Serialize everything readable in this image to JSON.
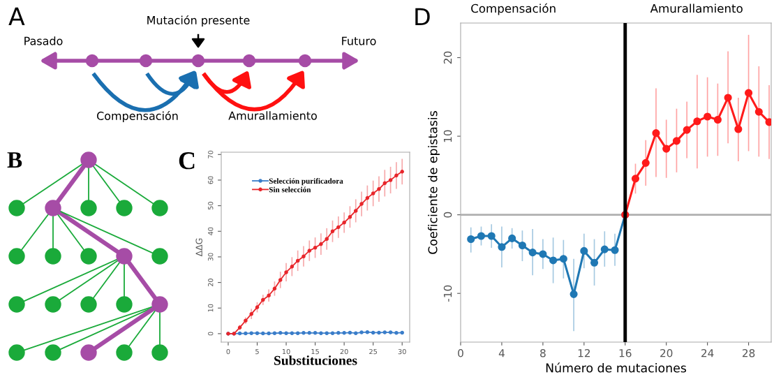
{
  "chart_data": [
    {
      "type": "other",
      "title": "A",
      "annotations": [
        "Pasado",
        "Futuro",
        "Mutación presente",
        "Compensación",
        "Amurallamiento"
      ]
    },
    {
      "type": "other",
      "title": "B"
    },
    {
      "type": "line",
      "title": "C",
      "xlabel": "Substituciones",
      "ylabel": "ΔΔG",
      "xlim": [
        -1.2,
        31.3
      ],
      "ylim": [
        -3.3,
        70.9
      ],
      "xticks": [
        0,
        5,
        10,
        15,
        20,
        25,
        30
      ],
      "yticks": [
        0,
        10,
        20,
        30,
        40,
        50,
        60,
        70
      ],
      "grid": false,
      "legend": "top left",
      "marker": "circle",
      "line_style": "solid",
      "x": [
        0,
        1,
        2,
        3,
        4,
        5,
        6,
        7,
        8,
        9,
        10,
        11,
        12,
        13,
        14,
        15,
        16,
        17,
        18,
        19,
        20,
        21,
        22,
        23,
        24,
        25,
        26,
        27,
        28,
        29,
        30
      ],
      "series": [
        {
          "name": "Selección purificadora",
          "color": "#3a7dc9",
          "values": [
            0,
            0,
            0.1,
            0.1,
            0.2,
            0.2,
            0.1,
            0.1,
            0.2,
            0.3,
            0.2,
            0.2,
            0.2,
            0.3,
            0.3,
            0.3,
            0.2,
            0.2,
            0.2,
            0.3,
            0.3,
            0.4,
            0.2,
            0.5,
            0.6,
            0.4,
            0.4,
            0.5,
            0.5,
            0.3,
            0.4
          ]
        },
        {
          "name": "Sin selección",
          "color": "#e8262b",
          "values": [
            0,
            0,
            2.4,
            5.1,
            7.7,
            10.3,
            13.2,
            14.9,
            17.6,
            21,
            24,
            26.2,
            28.5,
            30.2,
            32.4,
            33.6,
            35,
            37,
            40,
            41.6,
            43.4,
            45.6,
            48,
            50.7,
            53,
            54.8,
            56.5,
            58.8,
            60,
            61.8,
            63.3
          ],
          "errors": [
            null,
            null,
            1,
            1.3,
            2,
            2,
            2,
            2.4,
            2.8,
            3.2,
            3.6,
            3.7,
            4,
            4,
            4,
            4,
            4.2,
            4.2,
            4.2,
            4.2,
            4,
            4.2,
            4.5,
            4.8,
            4.9,
            5,
            5,
            5.2,
            5.2,
            5.2,
            5
          ]
        }
      ]
    },
    {
      "type": "line",
      "title": "D",
      "xlabel": "Número de mutaciones",
      "ylabel": "Coeficiente de epistasis",
      "xlim": [
        0,
        30.2
      ],
      "ylim": [
        -16.2,
        24.4
      ],
      "xticks": [
        0,
        4,
        8,
        12,
        16,
        20,
        24,
        28
      ],
      "yticks": [
        -10,
        0,
        10,
        20
      ],
      "grid": false,
      "marker": "circle",
      "line_style": "solid",
      "annotations": [
        "Compensación",
        "Amurallamiento"
      ],
      "ref_lines": [
        {
          "axis": "x",
          "value": 16,
          "color": "#000000"
        },
        {
          "axis": "y",
          "value": 0,
          "color": "#b0b0b0"
        }
      ],
      "series": [
        {
          "color": "#1f78b4",
          "x": [
            1,
            2,
            3,
            4,
            5,
            6,
            7,
            8,
            9,
            10,
            11,
            12,
            13,
            14,
            15,
            16
          ],
          "values": [
            -3.1,
            -2.7,
            -2.7,
            -4.1,
            -3.0,
            -3.9,
            -4.8,
            -5.0,
            -5.8,
            -5.6,
            -10.1,
            -4.6,
            -6.1,
            -4.4,
            -4.5,
            0
          ],
          "errors": [
            [
              -4.8,
              -1.6
            ],
            [
              -3.9,
              -1.5
            ],
            [
              -4.2,
              -1.2
            ],
            [
              -6.7,
              -1.5
            ],
            [
              -4.3,
              -1.7
            ],
            [
              -5.9,
              -2.0
            ],
            [
              -7.7,
              -1.8
            ],
            [
              -6.9,
              -3.1
            ],
            [
              -8.7,
              -2.9
            ],
            [
              -8.1,
              -3.2
            ],
            [
              -14.8,
              -5.6
            ],
            [
              -6.8,
              -2.4
            ],
            [
              -9.0,
              -3.1
            ],
            [
              -6.6,
              -2.1
            ],
            [
              -6.5,
              -2.4
            ],
            null
          ]
        },
        {
          "color": "#ff1a1a",
          "x": [
            16,
            17,
            18,
            19,
            20,
            21,
            22,
            23,
            24,
            25,
            26,
            27,
            28,
            29,
            30
          ],
          "values": [
            0,
            4.6,
            6.6,
            10.4,
            8.4,
            9.4,
            10.8,
            11.9,
            12.5,
            12.1,
            14.9,
            10.9,
            15.5,
            13.1,
            11.8
          ],
          "errors": [
            null,
            [
              2.7,
              6.5
            ],
            [
              3.7,
              9.5
            ],
            [
              4.8,
              16.1
            ],
            [
              4.7,
              12.1
            ],
            [
              5.4,
              13.5
            ],
            [
              7.2,
              14.4
            ],
            [
              5.9,
              17.8
            ],
            [
              7.4,
              17.5
            ],
            [
              7.5,
              16.7
            ],
            [
              9.1,
              20.8
            ],
            [
              6.8,
              14.9
            ],
            [
              8.1,
              22.9
            ],
            [
              7.4,
              18.9
            ],
            [
              7.1,
              16.5
            ]
          ]
        }
      ]
    }
  ]
}
